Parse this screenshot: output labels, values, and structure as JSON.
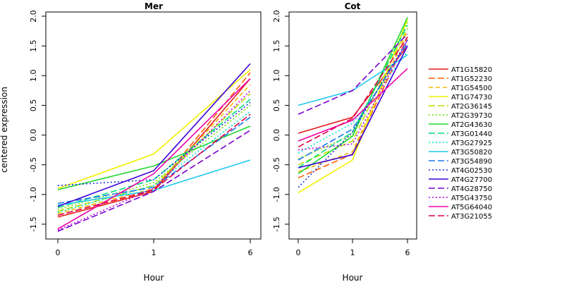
{
  "chart_data": {
    "type": "line",
    "ylabel": "centered expression",
    "legend_placement": "right",
    "grid": false,
    "panels": [
      {
        "title": "Mer",
        "xlabel": "Hour",
        "x": [
          0,
          1,
          6
        ],
        "x_ticks": [
          "0",
          "1",
          "6"
        ],
        "ylim": [
          -1.7,
          2.1
        ],
        "y_ticks": [
          "-1.5",
          "-1.0",
          "-0.5",
          "0.0",
          "0.5",
          "1.0",
          "1.5",
          "2.0"
        ],
        "series": [
          {
            "name": "AT1G15820",
            "values": [
              -1.38,
              -0.95,
              0.95
            ]
          },
          {
            "name": "AT1G52230",
            "values": [
              -1.35,
              -0.93,
              1.05
            ]
          },
          {
            "name": "AT1G54500",
            "values": [
              -1.32,
              -0.9,
              0.85
            ]
          },
          {
            "name": "AT1G74730",
            "values": [
              -0.9,
              -0.32,
              1.1
            ]
          },
          {
            "name": "AT2G36145",
            "values": [
              -1.28,
              -0.85,
              0.7
            ]
          },
          {
            "name": "AT2G39730",
            "values": [
              -1.25,
              -0.8,
              0.5
            ]
          },
          {
            "name": "AT2G43630",
            "values": [
              -0.92,
              -0.52,
              0.15
            ]
          },
          {
            "name": "AT3G01440",
            "values": [
              -1.22,
              -0.75,
              0.6
            ]
          },
          {
            "name": "AT3G27925",
            "values": [
              -1.3,
              -0.85,
              0.4
            ]
          },
          {
            "name": "AT3G50820",
            "values": [
              -1.18,
              -0.93,
              -0.42
            ]
          },
          {
            "name": "AT3G54890",
            "values": [
              -1.15,
              -0.88,
              0.3
            ]
          },
          {
            "name": "AT4G02530",
            "values": [
              -0.85,
              -0.75,
              0.55
            ]
          },
          {
            "name": "AT4G27700",
            "values": [
              -1.2,
              -0.6,
              1.2
            ]
          },
          {
            "name": "AT4G28750",
            "values": [
              -1.62,
              -0.95,
              0.08
            ]
          },
          {
            "name": "AT5G43750",
            "values": [
              -1.6,
              -0.9,
              0.75
            ]
          },
          {
            "name": "AT5G64040",
            "values": [
              -1.58,
              -0.65,
              0.95
            ]
          },
          {
            "name": "AT3G21055",
            "values": [
              -1.35,
              -0.92,
              0.35
            ]
          }
        ]
      },
      {
        "title": "Cot",
        "xlabel": "Hour",
        "x": [
          0,
          1,
          6
        ],
        "x_ticks": [
          "0",
          "1",
          "6"
        ],
        "ylim": [
          -1.7,
          2.1
        ],
        "y_ticks": [
          "-1.5",
          "-1.0",
          "-0.5",
          "0.0",
          "0.5",
          "1.0",
          "1.5",
          "2.0"
        ],
        "series": [
          {
            "name": "AT1G15820",
            "values": [
              0.03,
              0.3,
              1.5
            ]
          },
          {
            "name": "AT1G52230",
            "values": [
              -0.72,
              -0.32,
              1.65
            ]
          },
          {
            "name": "AT1G54500",
            "values": [
              -0.62,
              -0.28,
              1.75
            ]
          },
          {
            "name": "AT1G74730",
            "values": [
              -0.97,
              -0.42,
              1.95
            ]
          },
          {
            "name": "AT2G36145",
            "values": [
              -0.5,
              -0.1,
              1.8
            ]
          },
          {
            "name": "AT2G39730",
            "values": [
              -0.4,
              0.0,
              1.9
            ]
          },
          {
            "name": "AT2G43630",
            "values": [
              -0.65,
              -0.02,
              1.98
            ]
          },
          {
            "name": "AT3G01440",
            "values": [
              -0.55,
              0.05,
              1.85
            ]
          },
          {
            "name": "AT3G27925",
            "values": [
              -0.3,
              0.2,
              1.4
            ]
          },
          {
            "name": "AT3G50820",
            "values": [
              0.5,
              0.75,
              1.35
            ]
          },
          {
            "name": "AT3G54890",
            "values": [
              -0.42,
              0.1,
              1.55
            ]
          },
          {
            "name": "AT4G02530",
            "values": [
              -0.88,
              0.05,
              1.6
            ]
          },
          {
            "name": "AT4G27700",
            "values": [
              -0.55,
              -0.33,
              1.5
            ]
          },
          {
            "name": "AT4G28750",
            "values": [
              0.35,
              0.75,
              1.7
            ]
          },
          {
            "name": "AT5G43750",
            "values": [
              -0.25,
              -0.15,
              1.6
            ]
          },
          {
            "name": "AT5G64040",
            "values": [
              -0.1,
              0.25,
              1.12
            ]
          },
          {
            "name": "AT3G21055",
            "values": [
              -0.2,
              0.28,
              1.65
            ]
          }
        ]
      }
    ]
  },
  "styles": {
    "colors": [
      "#e41a1c",
      "#ff5a00",
      "#f5b800",
      "#f0f000",
      "#b7e000",
      "#6ee000",
      "#1ed830",
      "#00e07a",
      "#00e8c8",
      "#1fc8f0",
      "#1a7ae8",
      "#1a30e0",
      "#3a00d8",
      "#7a00d0",
      "#c000e0",
      "#f000a8",
      "#e0004a"
    ],
    "dash": [
      "solid",
      "longdash",
      "dashed",
      "solid",
      "longdash",
      "dotted",
      "solid",
      "longdash",
      "dotted",
      "solid",
      "longdash",
      "dotted",
      "solid",
      "longdash",
      "dotted",
      "solid",
      "longdash"
    ]
  }
}
